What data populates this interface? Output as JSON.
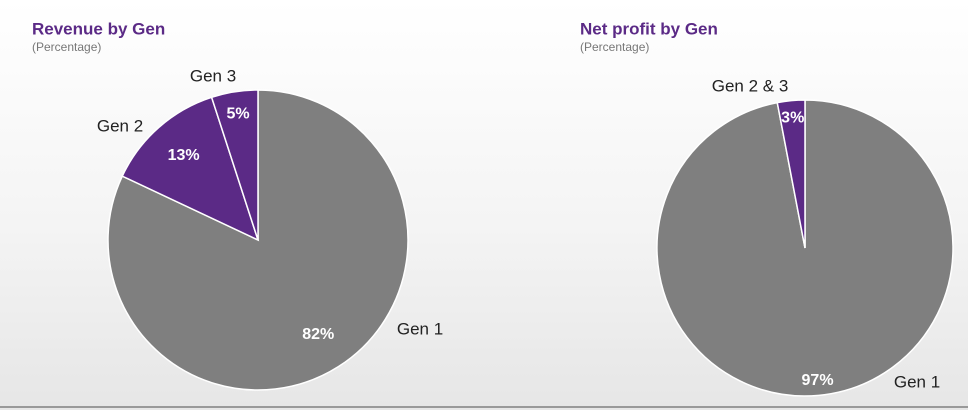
{
  "chart_data": [
    {
      "type": "pie",
      "title": "Revenue by Gen",
      "subtitle": "(Percentage)",
      "categories": [
        "Gen 1",
        "Gen 2",
        "Gen 3"
      ],
      "values": [
        82,
        13,
        5
      ],
      "value_labels": [
        "82%",
        "13%",
        "5%"
      ],
      "colors": [
        "#7f7f7f",
        "#5b2a86",
        "#5b2a86"
      ]
    },
    {
      "type": "pie",
      "title": "Net profit by Gen",
      "subtitle": "(Percentage)",
      "categories": [
        "Gen 1",
        "Gen 2 & 3"
      ],
      "values": [
        97,
        3
      ],
      "value_labels": [
        "97%",
        "3%"
      ],
      "colors": [
        "#7f7f7f",
        "#5b2a86"
      ]
    }
  ]
}
